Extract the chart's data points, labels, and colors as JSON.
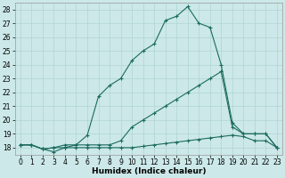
{
  "xlabel": "Humidex (Indice chaleur)",
  "xlim": [
    -0.5,
    23.5
  ],
  "ylim": [
    17.5,
    28.5
  ],
  "xticks": [
    0,
    1,
    2,
    3,
    4,
    5,
    6,
    7,
    8,
    9,
    10,
    11,
    12,
    13,
    14,
    15,
    16,
    17,
    18,
    19,
    20,
    21,
    22,
    23
  ],
  "yticks": [
    18,
    19,
    20,
    21,
    22,
    23,
    24,
    25,
    26,
    27,
    28
  ],
  "bg_color": "#cce8e8",
  "grid_color": "#b0d4d4",
  "line_color": "#1a6b5e",
  "line1_x": [
    0,
    1,
    2,
    3,
    4,
    5,
    6,
    7,
    8,
    9,
    10,
    11,
    12,
    13,
    14,
    15,
    16,
    17,
    18,
    19,
    20,
    21,
    22,
    23
  ],
  "line1_y": [
    18.2,
    18.2,
    17.9,
    17.7,
    18.0,
    18.0,
    18.0,
    18.0,
    18.0,
    18.0,
    18.0,
    18.1,
    18.2,
    18.3,
    18.4,
    18.5,
    18.6,
    18.7,
    18.8,
    18.9,
    18.8,
    18.5,
    18.5,
    18.0
  ],
  "line2_x": [
    0,
    1,
    2,
    3,
    4,
    5,
    6,
    7,
    8,
    9,
    10,
    11,
    12,
    13,
    14,
    15,
    16,
    17,
    18,
    19,
    20,
    21,
    22,
    23
  ],
  "line2_y": [
    18.2,
    18.2,
    17.9,
    18.0,
    18.0,
    18.2,
    18.2,
    18.2,
    18.2,
    18.5,
    19.5,
    20.0,
    20.5,
    21.0,
    21.5,
    22.0,
    22.5,
    23.0,
    23.5,
    19.5,
    19.0,
    19.0,
    19.0,
    18.0
  ],
  "line3_x": [
    0,
    1,
    2,
    3,
    4,
    5,
    6,
    7,
    8,
    9,
    10,
    11,
    12,
    13,
    14,
    15,
    16,
    17,
    18,
    19,
    20,
    21,
    22,
    23
  ],
  "line3_y": [
    18.2,
    18.2,
    17.9,
    18.0,
    18.2,
    18.2,
    18.9,
    21.7,
    22.5,
    23.0,
    24.3,
    25.0,
    25.5,
    27.2,
    27.5,
    28.2,
    27.0,
    26.7,
    24.0,
    19.8,
    19.0,
    19.0,
    19.0,
    18.0
  ]
}
